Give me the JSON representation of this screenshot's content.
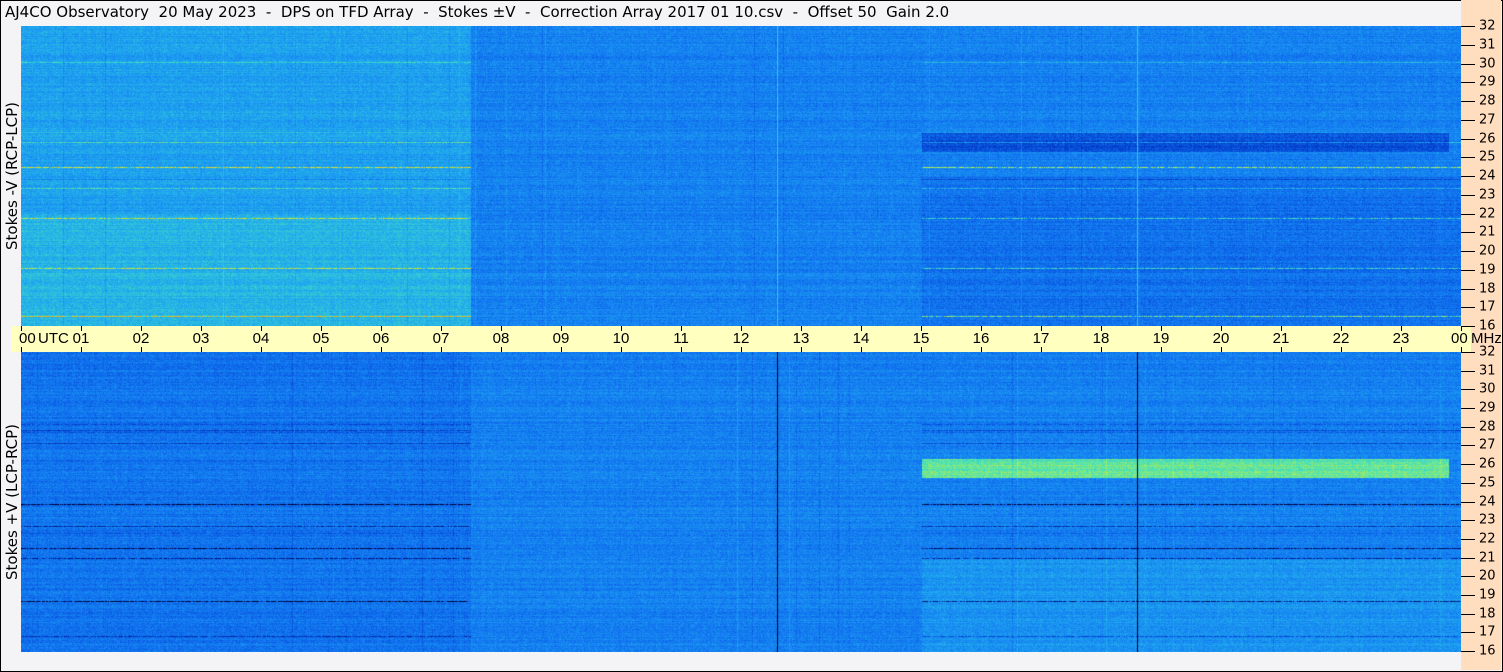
{
  "title": "AJ4CO Observatory  20 May 2023  -  DPS on TFD Array  -  Stokes ±V  -  Correction Array 2017 01 10.csv  -  Offset 50  Gain 2.0",
  "chart_data": {
    "type": "heatmap",
    "title": "AJ4CO Observatory  20 May 2023  -  DPS on TFD Array  -  Stokes ±V  -  Correction Array 2017 01 10.csv  -  Offset 50  Gain 2.0",
    "x_unit": "UTC",
    "y_unit": "MHz",
    "x_ticks": [
      "00",
      "01",
      "02",
      "03",
      "04",
      "05",
      "06",
      "07",
      "08",
      "09",
      "10",
      "11",
      "12",
      "13",
      "14",
      "15",
      "16",
      "17",
      "18",
      "19",
      "20",
      "21",
      "22",
      "23",
      "00"
    ],
    "xlim_hours": [
      0,
      24
    ],
    "y_ticks": [
      16,
      17,
      18,
      19,
      20,
      21,
      22,
      23,
      24,
      25,
      26,
      27,
      28,
      29,
      30,
      31,
      32
    ],
    "ylim_mhz": [
      16,
      32
    ],
    "panels": [
      {
        "ylabel": "Stokes -V (RCP-LCP)",
        "vertical_line_color": "#30c8e0"
      },
      {
        "ylabel": "Stokes +V (LCP-RCP)",
        "vertical_line_color": "#000020"
      }
    ],
    "vertical_lines_hours": [
      12.6,
      18.6
    ],
    "colormap": [
      "#000030",
      "#0030c0",
      "#1070f0",
      "#20a8f0",
      "#40e0c0",
      "#c8f040",
      "#ffa000",
      "#ff20ff"
    ]
  },
  "colors": {
    "axis_strip": "#ffffc0",
    "label_column": "#ffdec0",
    "background": "#f4f4f6"
  }
}
